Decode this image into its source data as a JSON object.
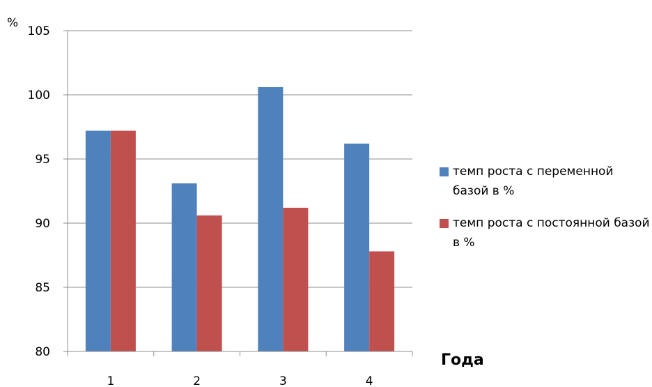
{
  "chart_data": {
    "type": "bar",
    "categories": [
      "1",
      "2",
      "3",
      "4"
    ],
    "series": [
      {
        "name": "темп роста с переменной базой в %",
        "values": [
          97.2,
          93.1,
          100.6,
          96.2
        ],
        "color": "#4f81bd"
      },
      {
        "name": "темп роста с постоянной базой в %",
        "values": [
          97.2,
          90.6,
          91.2,
          87.8
        ],
        "color": "#c0504d"
      }
    ],
    "xlabel": "Года",
    "ylabel": "%",
    "ylim": [
      80,
      105
    ],
    "yticks": [
      "80",
      "85",
      "90",
      "95",
      "100",
      "105"
    ],
    "grid": true,
    "legend": "right"
  }
}
